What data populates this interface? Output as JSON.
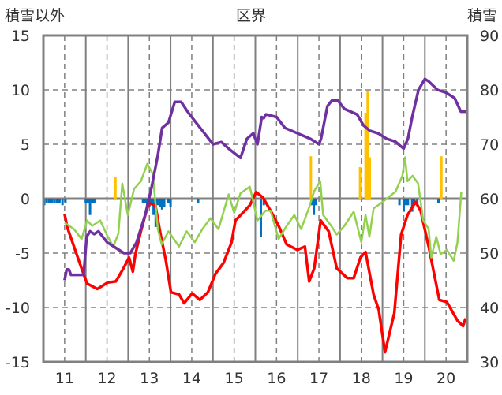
{
  "chart_data": {
    "type": "line",
    "title": "区界",
    "ylabel_left": "積雪以外",
    "ylabel_right": "積雪",
    "xlim": [
      10.5,
      20.5
    ],
    "ylim_left": [
      -15,
      15
    ],
    "ylim_right": [
      30,
      90
    ],
    "x_ticks": [
      "11",
      "12",
      "13",
      "14",
      "15",
      "16",
      "17",
      "18",
      "19",
      "20"
    ],
    "x_tick_values": [
      11,
      12,
      13,
      14,
      15,
      16,
      17,
      18,
      19,
      20
    ],
    "y_left_ticks": [
      15,
      10,
      5,
      0,
      -5,
      -10,
      -15
    ],
    "y_right_ticks": [
      90,
      80,
      70,
      60,
      50,
      40,
      30
    ],
    "grid": true,
    "colors": {
      "red": "#FF0000",
      "green": "#92D050",
      "purple": "#7030A0",
      "orange": "#FFC000",
      "blue": "#0070C0",
      "grid": "#808080"
    },
    "series": [
      {
        "name": "red",
        "axis": "left",
        "color": "#FF0000",
        "points": [
          [
            11.0,
            -1.4
          ],
          [
            11.06,
            -2.6
          ],
          [
            11.22,
            -4.4
          ],
          [
            11.4,
            -6.4
          ],
          [
            11.53,
            -7.8
          ],
          [
            11.77,
            -8.3
          ],
          [
            12.02,
            -7.7
          ],
          [
            12.21,
            -7.6
          ],
          [
            12.39,
            -6.4
          ],
          [
            12.52,
            -5.4
          ],
          [
            12.61,
            -6.7
          ],
          [
            12.67,
            -5.1
          ],
          [
            12.8,
            -3
          ],
          [
            12.98,
            -0.4
          ],
          [
            13.14,
            -0.6
          ],
          [
            13.26,
            -3.2
          ],
          [
            13.39,
            -5.7
          ],
          [
            13.51,
            -8.6
          ],
          [
            13.7,
            -8.8
          ],
          [
            13.82,
            -9.6
          ],
          [
            14.01,
            -8.7
          ],
          [
            14.19,
            -9.3
          ],
          [
            14.38,
            -8.6
          ],
          [
            14.56,
            -6.9
          ],
          [
            14.75,
            -5.9
          ],
          [
            14.94,
            -4
          ],
          [
            15.03,
            -2
          ],
          [
            15.18,
            -1.4
          ],
          [
            15.37,
            -0.6
          ],
          [
            15.52,
            0.6
          ],
          [
            15.68,
            0.1
          ],
          [
            15.86,
            -1.1
          ],
          [
            16.05,
            -2.5
          ],
          [
            16.24,
            -4.2
          ],
          [
            16.49,
            -4.7
          ],
          [
            16.67,
            -4.4
          ],
          [
            16.77,
            -7.6
          ],
          [
            16.89,
            -6.4
          ],
          [
            17.04,
            -2
          ],
          [
            17.23,
            -3
          ],
          [
            17.42,
            -6.4
          ],
          [
            17.67,
            -7.3
          ],
          [
            17.82,
            -7.3
          ],
          [
            17.98,
            -5.4
          ],
          [
            18.1,
            -4.9
          ],
          [
            18.29,
            -8.8
          ],
          [
            18.41,
            -10.2
          ],
          [
            18.56,
            -14.1
          ],
          [
            18.78,
            -10.5
          ],
          [
            18.94,
            -3.3
          ],
          [
            19.09,
            -1.5
          ],
          [
            19.28,
            -0.3
          ],
          [
            19.4,
            -1.1
          ],
          [
            19.59,
            -4.4
          ],
          [
            19.84,
            -9.3
          ],
          [
            20.02,
            -9.5
          ],
          [
            20.27,
            -11.2
          ],
          [
            20.4,
            -11.7
          ],
          [
            20.46,
            -11
          ]
        ]
      },
      {
        "name": "green",
        "axis": "left",
        "color": "#92D050",
        "points": [
          [
            11.0,
            -2.2
          ],
          [
            11.22,
            -2.8
          ],
          [
            11.4,
            -3.7
          ],
          [
            11.53,
            -2
          ],
          [
            11.65,
            -2.5
          ],
          [
            11.84,
            -2
          ],
          [
            12.02,
            -3.5
          ],
          [
            12.15,
            -4.4
          ],
          [
            12.27,
            -3.2
          ],
          [
            12.36,
            1.4
          ],
          [
            12.49,
            -1.5
          ],
          [
            12.64,
            0.9
          ],
          [
            12.8,
            1.6
          ],
          [
            12.95,
            3.2
          ],
          [
            13.08,
            2.3
          ],
          [
            13.2,
            -2.8
          ],
          [
            13.29,
            -4.2
          ],
          [
            13.45,
            -3
          ],
          [
            13.7,
            -4.4
          ],
          [
            13.88,
            -3
          ],
          [
            14.07,
            -4
          ],
          [
            14.25,
            -2.8
          ],
          [
            14.44,
            -1.8
          ],
          [
            14.63,
            -2.8
          ],
          [
            14.87,
            0.4
          ],
          [
            15.0,
            -1.3
          ],
          [
            15.15,
            0.5
          ],
          [
            15.37,
            1.1
          ],
          [
            15.55,
            -2
          ],
          [
            15.74,
            -1.1
          ],
          [
            15.86,
            -1.1
          ],
          [
            16.05,
            -3.7
          ],
          [
            16.24,
            -2.5
          ],
          [
            16.42,
            -1.5
          ],
          [
            16.58,
            -2.8
          ],
          [
            16.77,
            -0.8
          ],
          [
            16.89,
            0.7
          ],
          [
            17.03,
            1.6
          ],
          [
            17.1,
            -1.5
          ],
          [
            17.29,
            -2.5
          ],
          [
            17.42,
            -3.3
          ],
          [
            17.6,
            -2.5
          ],
          [
            17.82,
            -1.2
          ],
          [
            18.0,
            -4
          ],
          [
            18.1,
            -1.5
          ],
          [
            18.19,
            -3.5
          ],
          [
            18.29,
            -0.9
          ],
          [
            18.47,
            -0.4
          ],
          [
            18.81,
            0.65
          ],
          [
            18.97,
            2.1
          ],
          [
            19.03,
            3.8
          ],
          [
            19.09,
            1.6
          ],
          [
            19.21,
            2.1
          ],
          [
            19.34,
            1.4
          ],
          [
            19.46,
            -2
          ],
          [
            19.59,
            -2.8
          ],
          [
            19.65,
            -5.4
          ],
          [
            19.77,
            -3.5
          ],
          [
            19.87,
            -5.1
          ],
          [
            20.02,
            -4.7
          ],
          [
            20.18,
            -5.7
          ],
          [
            20.27,
            -4
          ],
          [
            20.36,
            0.65
          ]
        ]
      },
      {
        "name": "purple",
        "axis": "right",
        "color": "#7030A0",
        "points": [
          [
            11.0,
            45
          ],
          [
            11.05,
            47
          ],
          [
            11.1,
            47
          ],
          [
            11.15,
            46
          ],
          [
            11.45,
            46
          ],
          [
            11.52,
            53
          ],
          [
            11.6,
            54
          ],
          [
            11.7,
            53.5
          ],
          [
            11.8,
            54
          ],
          [
            11.9,
            53
          ],
          [
            12.0,
            52
          ],
          [
            12.2,
            51
          ],
          [
            12.4,
            50
          ],
          [
            12.55,
            50
          ],
          [
            12.7,
            52
          ],
          [
            12.9,
            57
          ],
          [
            13.05,
            62
          ],
          [
            13.2,
            68
          ],
          [
            13.3,
            73
          ],
          [
            13.45,
            74
          ],
          [
            13.6,
            77.8
          ],
          [
            13.75,
            77.8
          ],
          [
            13.9,
            76
          ],
          [
            14.1,
            74
          ],
          [
            14.3,
            72
          ],
          [
            14.5,
            70
          ],
          [
            14.7,
            70.4
          ],
          [
            14.9,
            69
          ],
          [
            15.0,
            68.4
          ],
          [
            15.15,
            67.5
          ],
          [
            15.3,
            71
          ],
          [
            15.45,
            72
          ],
          [
            15.55,
            70
          ],
          [
            15.65,
            75
          ],
          [
            15.7,
            74.8
          ],
          [
            15.75,
            75.5
          ],
          [
            16.0,
            75
          ],
          [
            16.2,
            73
          ],
          [
            16.5,
            72
          ],
          [
            16.8,
            71
          ],
          [
            17.0,
            70
          ],
          [
            17.05,
            71
          ],
          [
            17.2,
            77
          ],
          [
            17.3,
            78
          ],
          [
            17.45,
            78
          ],
          [
            17.6,
            76.5
          ],
          [
            17.9,
            75.5
          ],
          [
            18.05,
            73.5
          ],
          [
            18.2,
            72.5
          ],
          [
            18.4,
            72
          ],
          [
            18.6,
            71
          ],
          [
            18.8,
            70.5
          ],
          [
            19.0,
            69.2
          ],
          [
            19.1,
            71
          ],
          [
            19.2,
            75
          ],
          [
            19.35,
            80
          ],
          [
            19.5,
            82
          ],
          [
            19.6,
            81.5
          ],
          [
            19.8,
            80
          ],
          [
            20.0,
            79.5
          ],
          [
            20.2,
            78.5
          ],
          [
            20.35,
            76
          ],
          [
            20.5,
            76
          ]
        ]
      }
    ],
    "bars": [
      {
        "name": "orange",
        "axis": "left",
        "color": "#FFC000",
        "points": [
          [
            12.2,
            2
          ],
          [
            16.81,
            3.9
          ],
          [
            17.97,
            2.9
          ],
          [
            18.1,
            7.9
          ],
          [
            18.15,
            9.9
          ],
          [
            18.2,
            3.8
          ],
          [
            19.89,
            3.9
          ]
        ]
      },
      {
        "name": "blue",
        "axis": "left",
        "color": "#0070C0",
        "points": [
          [
            10.52,
            -0.6
          ],
          [
            10.58,
            -0.4
          ],
          [
            10.64,
            -0.4
          ],
          [
            10.7,
            -0.4
          ],
          [
            10.76,
            -0.4
          ],
          [
            10.82,
            -0.4
          ],
          [
            10.88,
            -0.4
          ],
          [
            10.95,
            -0.6
          ],
          [
            11.02,
            -0.4
          ],
          [
            11.5,
            -0.4
          ],
          [
            11.55,
            -0.4
          ],
          [
            11.6,
            -1.5
          ],
          [
            11.65,
            -0.4
          ],
          [
            11.7,
            -0.4
          ],
          [
            12.85,
            -0.4
          ],
          [
            12.9,
            -0.4
          ],
          [
            12.95,
            -0.8
          ],
          [
            13.0,
            -0.8
          ],
          [
            13.05,
            -0.6
          ],
          [
            13.1,
            -1.5
          ],
          [
            13.15,
            -2.6
          ],
          [
            13.2,
            -0.6
          ],
          [
            13.25,
            -0.8
          ],
          [
            13.3,
            -1.0
          ],
          [
            13.35,
            -0.8
          ],
          [
            13.45,
            -0.4
          ],
          [
            13.5,
            -0.8
          ],
          [
            14.15,
            -0.4
          ],
          [
            15.63,
            -3.5
          ],
          [
            15.7,
            -0.6
          ],
          [
            16.84,
            -0.6
          ],
          [
            16.88,
            -1.5
          ],
          [
            16.93,
            -0.6
          ],
          [
            18.9,
            -0.6
          ],
          [
            19.0,
            -1.2
          ],
          [
            19.05,
            -0.6
          ],
          [
            19.1,
            -0.6
          ],
          [
            19.2,
            -1.2
          ],
          [
            19.25,
            -0.6
          ],
          [
            19.32,
            -0.6
          ],
          [
            19.82,
            -0.4
          ]
        ]
      }
    ]
  }
}
